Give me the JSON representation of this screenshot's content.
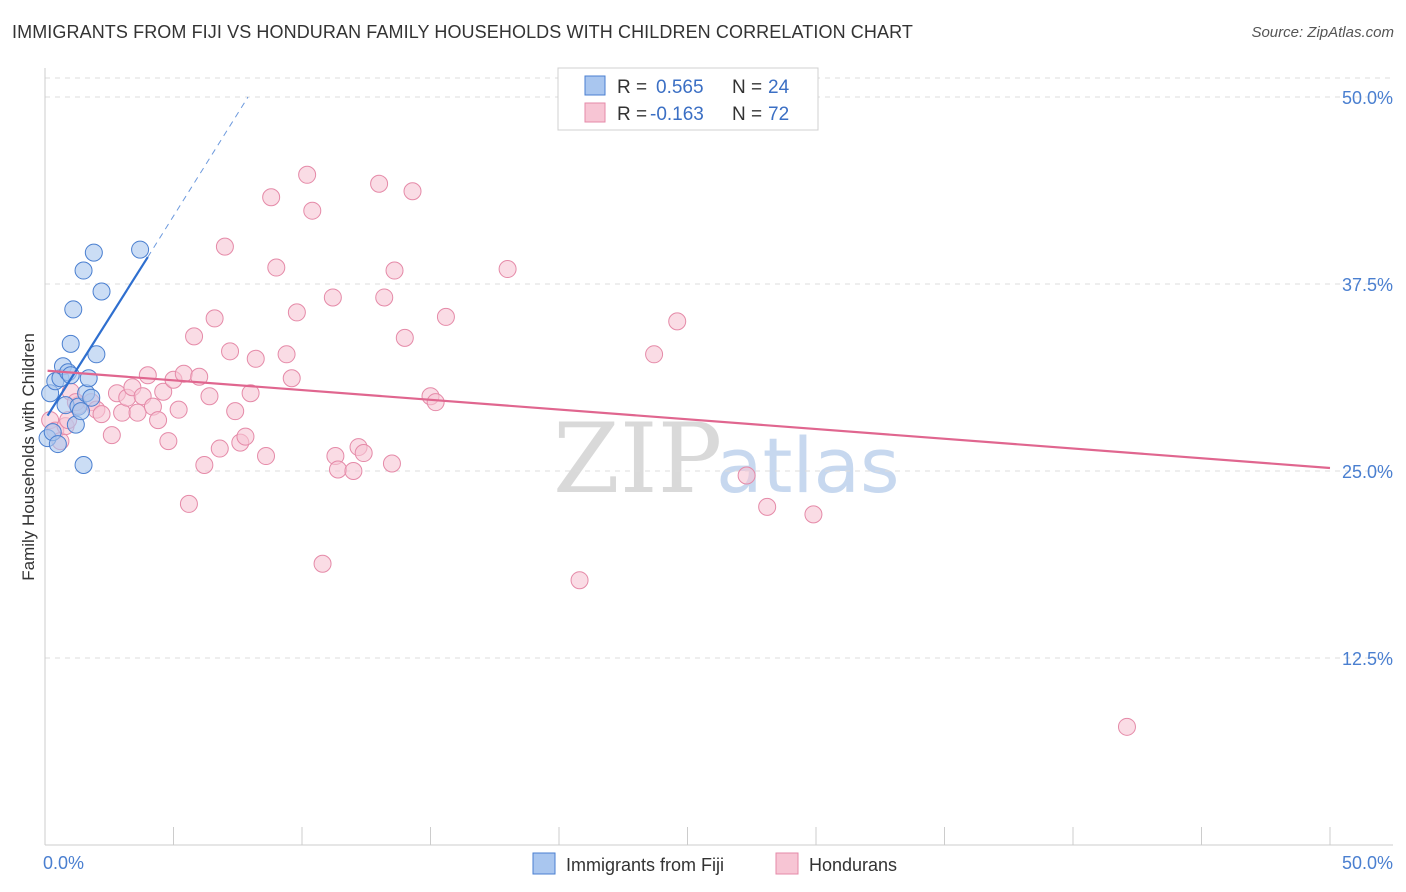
{
  "header": {
    "title": "IMMIGRANTS FROM FIJI VS HONDURAN FAMILY HOUSEHOLDS WITH CHILDREN CORRELATION CHART",
    "source": "Source: ZipAtlas.com"
  },
  "watermark": {
    "zip": "ZIP",
    "atlas": "atlas"
  },
  "legend": {
    "fiji": {
      "r_label": "R =",
      "r_value": "0.565",
      "n_label": "N =",
      "n_value": "24"
    },
    "honduran": {
      "r_label": "R =",
      "r_value": "-0.163",
      "n_label": "N =",
      "n_value": "72"
    }
  },
  "colors": {
    "fiji_fill": "#a9c6ef",
    "fiji_stroke": "#4a7fd0",
    "fiji_line": "#2f6fcf",
    "honduran_fill": "#f7c5d4",
    "honduran_stroke": "#e58aa8",
    "honduran_line": "#e0668f",
    "axis_text": "#4a7fd0",
    "grid": "#dcdcdc"
  },
  "chart_data": {
    "type": "scatter",
    "title": "IMMIGRANTS FROM FIJI VS HONDURAN FAMILY HOUSEHOLDS WITH CHILDREN CORRELATION CHART",
    "xlabel": "",
    "ylabel": "Family Households with Children",
    "xlim": [
      0,
      50
    ],
    "ylim": [
      0,
      51
    ],
    "x_tick_labels": [
      "0.0%",
      "50.0%"
    ],
    "y_ticks": [
      12.5,
      25.0,
      37.5,
      50.0
    ],
    "y_tick_labels": [
      "12.5%",
      "25.0%",
      "37.5%",
      "50.0%"
    ],
    "grid": true,
    "legend_position": "bottom-center",
    "series": [
      {
        "name": "Immigrants from Fiji",
        "R": 0.565,
        "N": 24,
        "points": [
          [
            0.1,
            27.2
          ],
          [
            0.2,
            30.2
          ],
          [
            0.3,
            27.6
          ],
          [
            0.4,
            31.0
          ],
          [
            0.5,
            26.8
          ],
          [
            0.6,
            31.2
          ],
          [
            0.7,
            32.0
          ],
          [
            0.8,
            29.4
          ],
          [
            0.9,
            31.6
          ],
          [
            1.0,
            33.5
          ],
          [
            1.1,
            35.8
          ],
          [
            1.2,
            28.1
          ],
          [
            1.3,
            29.3
          ],
          [
            1.4,
            29.0
          ],
          [
            1.5,
            38.4
          ],
          [
            1.5,
            25.4
          ],
          [
            1.6,
            30.2
          ],
          [
            1.7,
            31.2
          ],
          [
            1.8,
            29.9
          ],
          [
            1.9,
            39.6
          ],
          [
            2.0,
            32.8
          ],
          [
            2.2,
            37.0
          ],
          [
            3.7,
            39.8
          ],
          [
            1.0,
            31.4
          ]
        ],
        "trend": {
          "x": [
            0.1,
            4.0
          ],
          "y": [
            28.7,
            39.3
          ],
          "dashed_to": [
            7.9,
            50.0
          ]
        }
      },
      {
        "name": "Hondurans",
        "R": -0.163,
        "N": 72,
        "points": [
          [
            0.2,
            28.4
          ],
          [
            0.4,
            27.7
          ],
          [
            0.6,
            27.0
          ],
          [
            0.8,
            28.0
          ],
          [
            1.0,
            30.3
          ],
          [
            1.3,
            29.4
          ],
          [
            1.8,
            29.6
          ],
          [
            2.0,
            29.1
          ],
          [
            2.2,
            28.8
          ],
          [
            2.6,
            27.4
          ],
          [
            2.8,
            30.2
          ],
          [
            3.0,
            28.9
          ],
          [
            3.2,
            29.9
          ],
          [
            3.4,
            30.6
          ],
          [
            3.6,
            28.9
          ],
          [
            3.8,
            30.0
          ],
          [
            4.0,
            31.4
          ],
          [
            4.2,
            29.3
          ],
          [
            4.4,
            28.4
          ],
          [
            4.6,
            30.3
          ],
          [
            4.8,
            27.0
          ],
          [
            5.0,
            31.1
          ],
          [
            5.2,
            29.1
          ],
          [
            5.4,
            31.5
          ],
          [
            5.6,
            22.8
          ],
          [
            5.8,
            34.0
          ],
          [
            6.0,
            31.3
          ],
          [
            6.2,
            25.4
          ],
          [
            6.4,
            30.0
          ],
          [
            6.6,
            35.2
          ],
          [
            6.8,
            26.5
          ],
          [
            7.0,
            40.0
          ],
          [
            7.2,
            33.0
          ],
          [
            7.4,
            29.0
          ],
          [
            7.6,
            26.9
          ],
          [
            7.8,
            27.3
          ],
          [
            8.0,
            30.2
          ],
          [
            8.2,
            32.5
          ],
          [
            8.6,
            26.0
          ],
          [
            8.8,
            43.3
          ],
          [
            9.0,
            38.6
          ],
          [
            9.4,
            32.8
          ],
          [
            9.6,
            31.2
          ],
          [
            9.8,
            35.6
          ],
          [
            10.2,
            44.8
          ],
          [
            10.4,
            42.4
          ],
          [
            10.8,
            18.8
          ],
          [
            11.2,
            36.6
          ],
          [
            11.3,
            26.0
          ],
          [
            11.4,
            25.1
          ],
          [
            12.0,
            25.0
          ],
          [
            12.2,
            26.6
          ],
          [
            12.4,
            26.2
          ],
          [
            13.0,
            44.2
          ],
          [
            13.2,
            36.6
          ],
          [
            13.5,
            25.5
          ],
          [
            13.6,
            38.4
          ],
          [
            14.0,
            33.9
          ],
          [
            14.3,
            43.7
          ],
          [
            15.0,
            30.0
          ],
          [
            15.2,
            29.6
          ],
          [
            15.6,
            35.3
          ],
          [
            18.0,
            38.5
          ],
          [
            20.8,
            17.7
          ],
          [
            23.7,
            32.8
          ],
          [
            24.6,
            35.0
          ],
          [
            27.3,
            24.7
          ],
          [
            28.1,
            22.6
          ],
          [
            29.9,
            22.1
          ],
          [
            42.1,
            7.9
          ],
          [
            1.2,
            29.6
          ],
          [
            0.9,
            28.4
          ]
        ],
        "trend": {
          "x": [
            0.1,
            50.0
          ],
          "y": [
            31.7,
            25.2
          ]
        }
      }
    ]
  },
  "bottom_legend": [
    {
      "label": "Immigrants from Fiji"
    },
    {
      "label": "Hondurans"
    }
  ]
}
